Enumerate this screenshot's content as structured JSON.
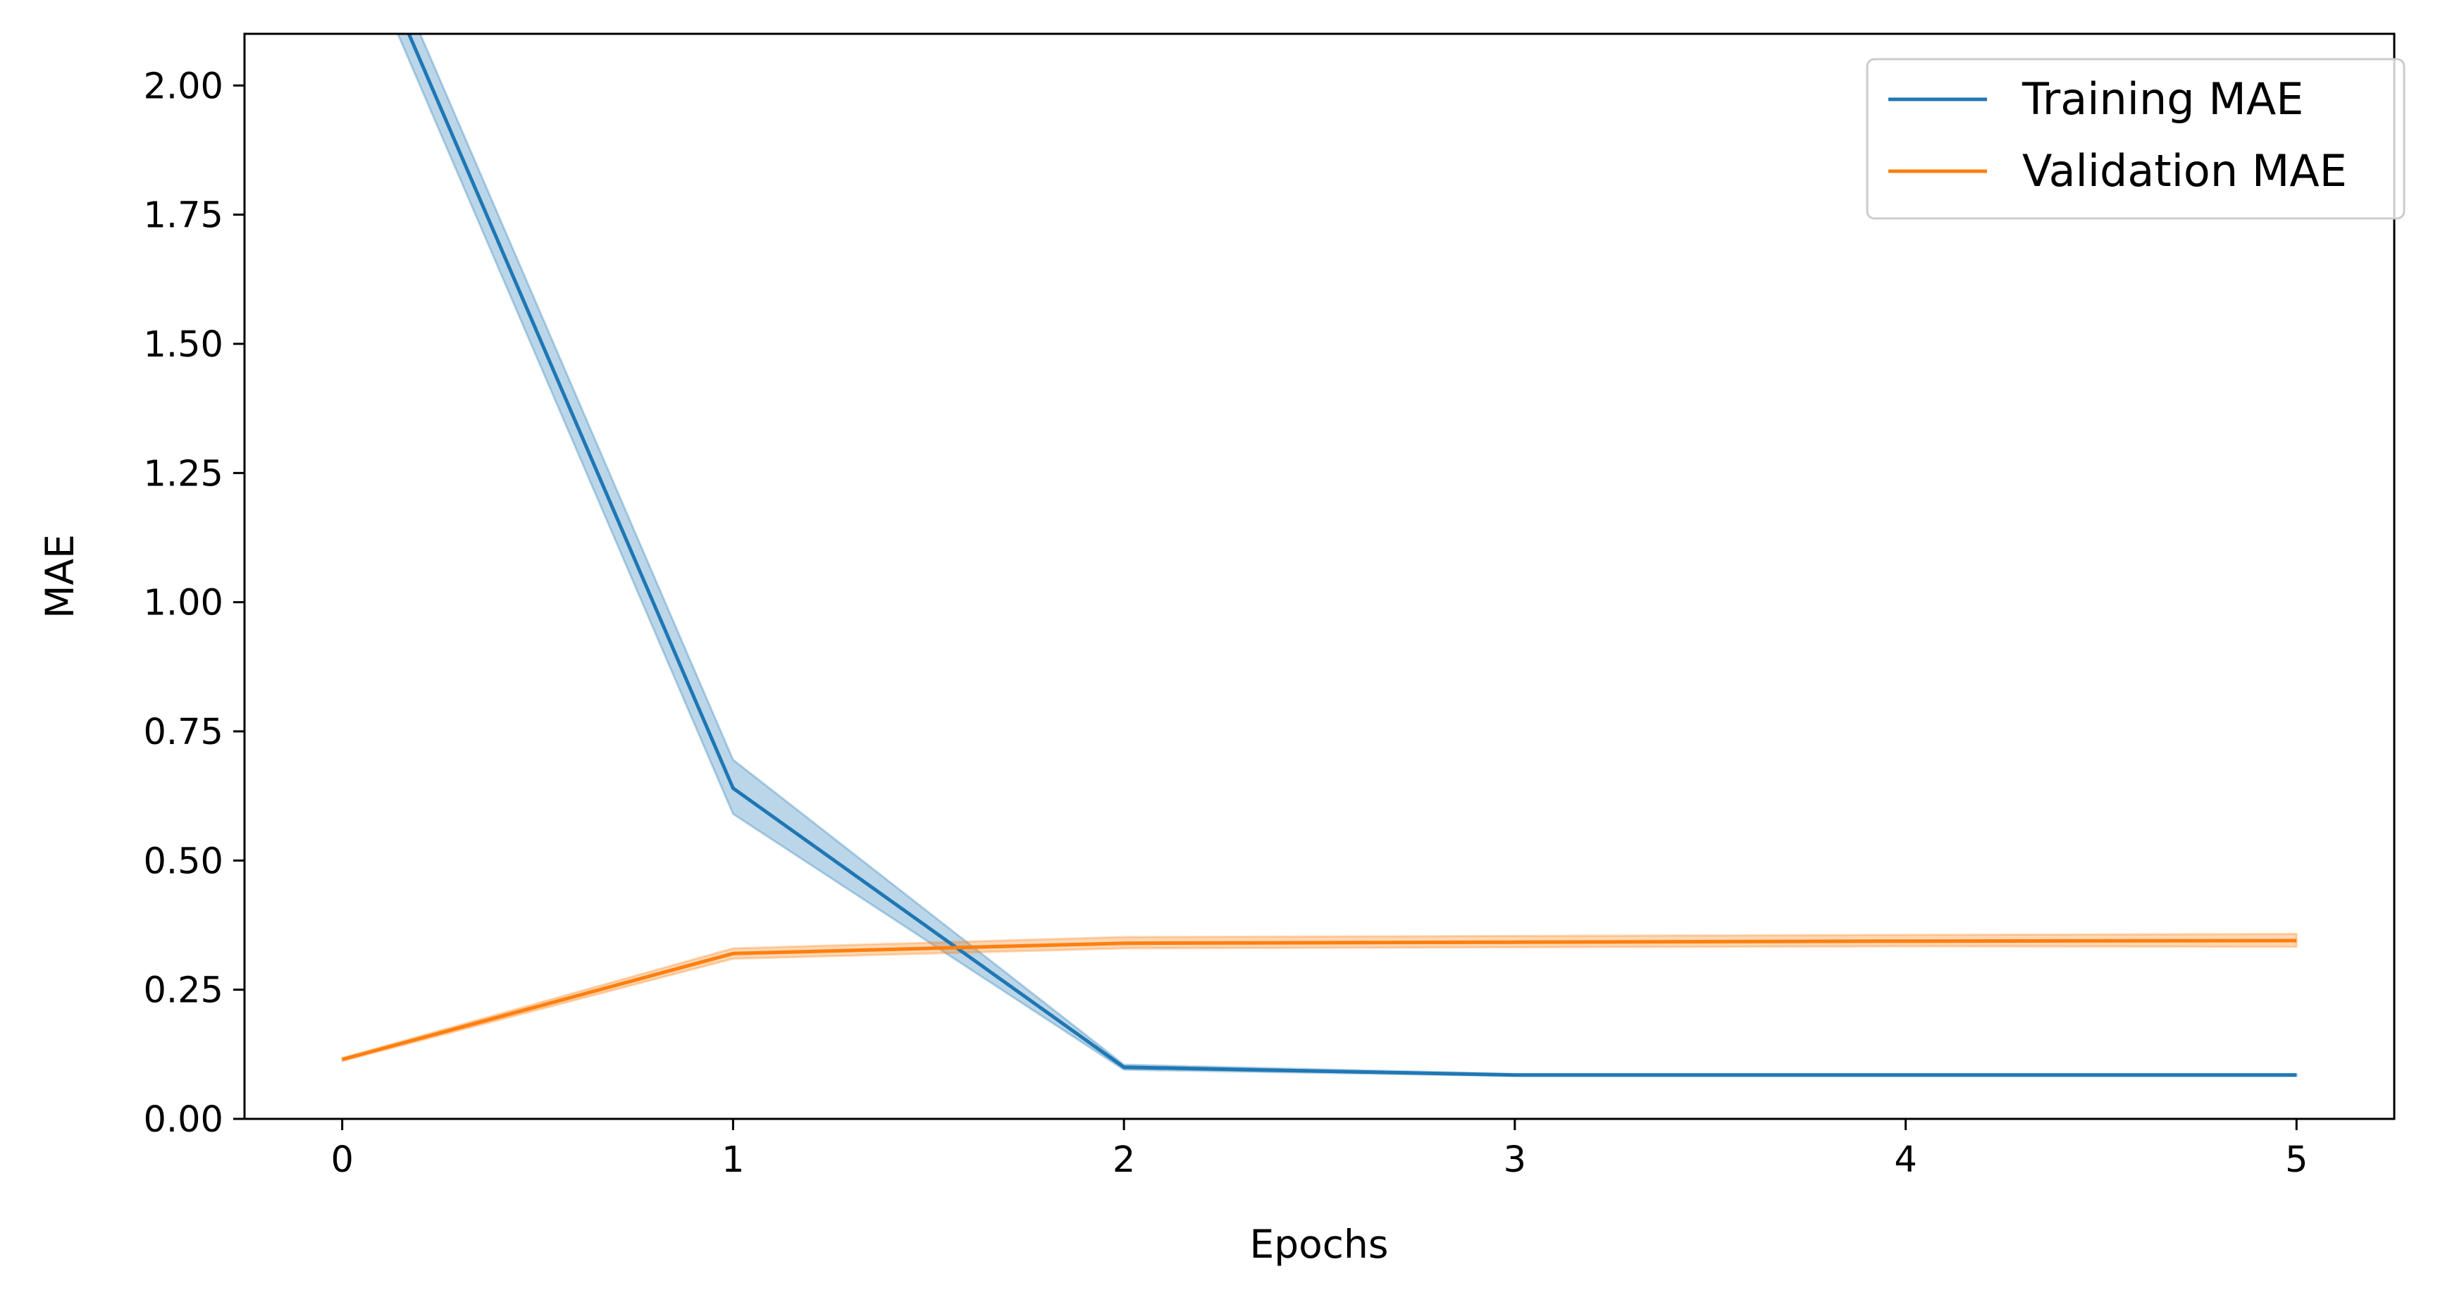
{
  "chart_data": {
    "type": "line",
    "title": "",
    "xlabel": "Epochs",
    "ylabel": "MAE",
    "xlim": [
      -0.25,
      5.25
    ],
    "ylim": [
      0.0,
      2.1
    ],
    "x_ticks": [
      "0",
      "1",
      "2",
      "3",
      "4",
      "5"
    ],
    "y_ticks": [
      "0.00",
      "0.25",
      "0.50",
      "0.75",
      "1.00",
      "1.25",
      "1.50",
      "1.75",
      "2.00"
    ],
    "grid": false,
    "legend_position": "top-right",
    "x": [
      0,
      1,
      2,
      3,
      4,
      5
    ],
    "series": [
      {
        "name": "Training MAE",
        "color": "#1f77b4",
        "values": [
          2.4,
          0.64,
          0.1,
          0.085,
          0.085,
          0.085
        ],
        "lower": [
          2.35,
          0.59,
          0.095,
          0.083,
          0.083,
          0.083
        ],
        "upper": [
          2.45,
          0.695,
          0.105,
          0.087,
          0.087,
          0.087
        ]
      },
      {
        "name": "Validation MAE",
        "color": "#ff7f0e",
        "values": [
          0.115,
          0.32,
          0.34,
          0.342,
          0.344,
          0.345
        ],
        "lower": [
          0.112,
          0.31,
          0.33,
          0.332,
          0.334,
          0.333
        ],
        "upper": [
          0.118,
          0.33,
          0.352,
          0.354,
          0.356,
          0.358
        ]
      }
    ]
  }
}
